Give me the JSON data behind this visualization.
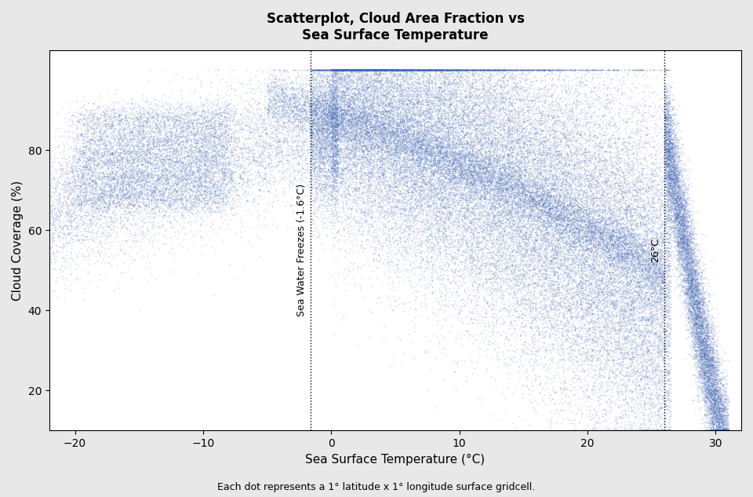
{
  "title": "Scatterplot, Cloud Area Fraction vs\nSea Surface Temperature",
  "xlabel": "Sea Surface Temperature (°C)",
  "ylabel": "Cloud Coverage (%)",
  "caption": "Each dot represents a 1° latitude x 1° longitude surface gridcell.",
  "xlim": [
    -22,
    32
  ],
  "ylim": [
    10,
    105
  ],
  "xticks": [
    -20,
    -10,
    0,
    10,
    20,
    30
  ],
  "yticks": [
    20,
    40,
    60,
    80
  ],
  "dot_color": "#4169b8",
  "dot_alpha": 0.25,
  "dot_size": 1.5,
  "vline1_x": -1.6,
  "vline2_x": 26,
  "vline1_label": "Sea Water Freezes (-1.6°C)",
  "vline2_label": "26°C",
  "background_color": "#ffffff",
  "n_points": 80000,
  "seed": 42
}
